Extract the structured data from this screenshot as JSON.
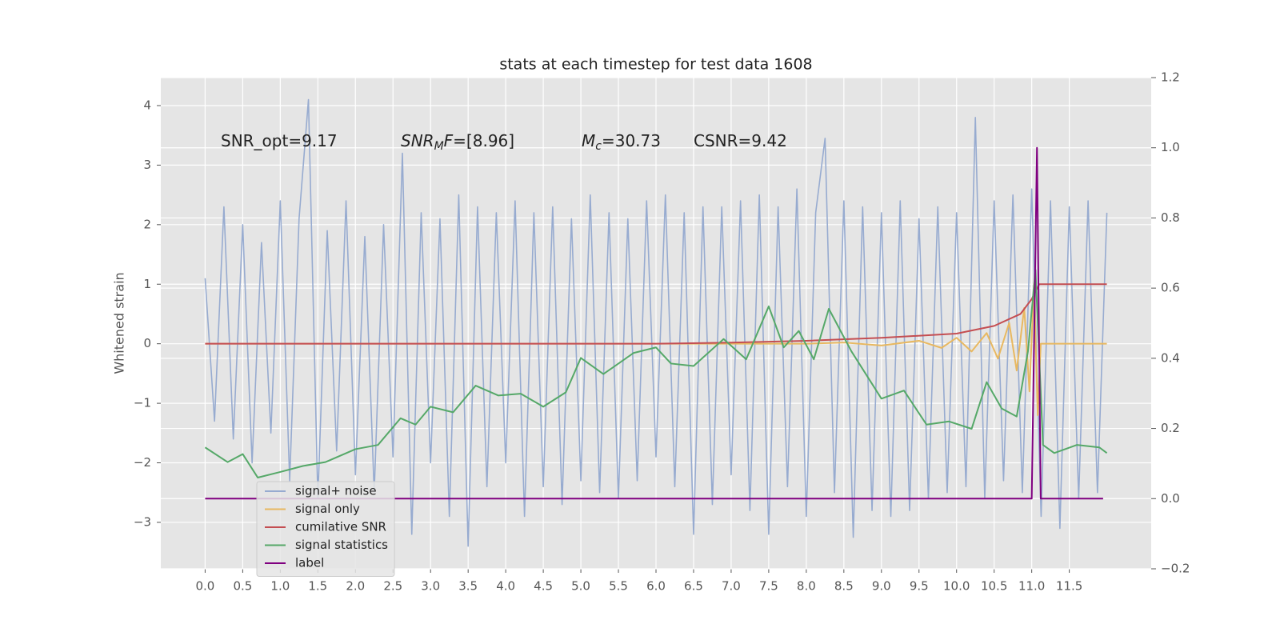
{
  "chart_data": {
    "type": "line",
    "title": "stats at each timestep for test data 1608",
    "ylabel": "Whitened strain",
    "xlim": [
      -0.59,
      12.59
    ],
    "ylim": [
      -3.78,
      4.47
    ],
    "y2lim": [
      -0.2,
      1.2
    ],
    "xticks": [
      {
        "value": 0,
        "label": "0.0"
      },
      {
        "value": 0.5,
        "label": "0.5"
      },
      {
        "value": 1,
        "label": "1.0"
      },
      {
        "value": 1.5,
        "label": "1.5"
      },
      {
        "value": 2,
        "label": "2.0"
      },
      {
        "value": 2.5,
        "label": "2.5"
      },
      {
        "value": 3,
        "label": "3.0"
      },
      {
        "value": 3.5,
        "label": "3.5"
      },
      {
        "value": 4,
        "label": "4.0"
      },
      {
        "value": 4.5,
        "label": "4.5"
      },
      {
        "value": 5,
        "label": "5.0"
      },
      {
        "value": 5.5,
        "label": "5.5"
      },
      {
        "value": 6,
        "label": "6.0"
      },
      {
        "value": 6.5,
        "label": "6.5"
      },
      {
        "value": 7,
        "label": "7.0"
      },
      {
        "value": 7.5,
        "label": "7.5"
      },
      {
        "value": 8,
        "label": "8.0"
      },
      {
        "value": 8.5,
        "label": "8.5"
      },
      {
        "value": 9,
        "label": "9.0"
      },
      {
        "value": 9.5,
        "label": "9.5"
      },
      {
        "value": 10,
        "label": "10.0"
      },
      {
        "value": 10.5,
        "label": "10.5"
      },
      {
        "value": 11,
        "label": "11.0"
      },
      {
        "value": 11.5,
        "label": "11.5"
      }
    ],
    "yticks": [
      {
        "value": -3,
        "label": "−3"
      },
      {
        "value": -2,
        "label": "−2"
      },
      {
        "value": -1,
        "label": "−1"
      },
      0,
      1,
      2,
      3,
      4
    ],
    "y2ticks": [
      {
        "value": -0.2,
        "label": "−0.2"
      },
      {
        "value": 0,
        "label": "0.0"
      },
      0.2,
      0.4,
      0.6,
      0.8,
      {
        "value": 1,
        "label": "1.0"
      },
      1.2
    ],
    "grid": true,
    "legend": "lower left",
    "annotations": [
      {
        "parts": [
          {
            "text": "SNR_opt=9.17"
          }
        ]
      },
      {
        "parts": [
          {
            "text": "SNR",
            "style": "italic"
          },
          {
            "text": "M",
            "style": "sub"
          },
          {
            "text": "F",
            "style": "italic"
          },
          {
            "text": "=[8.96]"
          }
        ]
      },
      {
        "parts": [
          {
            "text": "M",
            "style": "italic"
          },
          {
            "text": "c",
            "style": "sub"
          },
          {
            "text": "=30.73"
          }
        ]
      },
      {
        "parts": [
          {
            "text": "CSNR=9.42"
          }
        ]
      }
    ],
    "series": [
      {
        "name": "signal+ noise",
        "color": "#97abd0",
        "x": [
          0,
          0.125,
          0.25,
          0.375,
          0.5,
          0.625,
          0.75,
          0.875,
          1,
          1.125,
          1.25,
          1.375,
          1.5,
          1.625,
          1.75,
          1.875,
          2,
          2.125,
          2.25,
          2.375,
          2.5,
          2.625,
          2.75,
          2.875,
          3,
          3.125,
          3.25,
          3.375,
          3.5,
          3.625,
          3.75,
          3.875,
          4,
          4.125,
          4.25,
          4.375,
          4.5,
          4.625,
          4.75,
          4.875,
          5,
          5.125,
          5.25,
          5.375,
          5.5,
          5.625,
          5.75,
          5.875,
          6,
          6.125,
          6.25,
          6.375,
          6.5,
          6.625,
          6.75,
          6.875,
          7,
          7.125,
          7.25,
          7.375,
          7.5,
          7.625,
          7.75,
          7.875,
          8,
          8.125,
          8.25,
          8.375,
          8.5,
          8.625,
          8.75,
          8.875,
          9,
          9.125,
          9.25,
          9.375,
          9.5,
          9.625,
          9.75,
          9.875,
          10,
          10.125,
          10.25,
          10.375,
          10.5,
          10.625,
          10.75,
          10.875,
          11,
          11.125,
          11.25,
          11.375,
          11.5,
          11.625,
          11.75,
          11.875,
          12
        ],
        "values": [
          1.1,
          -1.3,
          2.3,
          -1.6,
          2.0,
          -2.0,
          1.7,
          -1.5,
          2.4,
          -2.3,
          2.1,
          4.1,
          -2.6,
          1.9,
          -1.8,
          2.4,
          -2.2,
          1.8,
          -2.5,
          2.0,
          -1.9,
          3.2,
          -3.2,
          2.2,
          -2.0,
          2.1,
          -2.9,
          2.5,
          -3.4,
          2.3,
          -2.4,
          2.2,
          -2.0,
          2.4,
          -2.9,
          2.2,
          -2.4,
          2.3,
          -2.7,
          2.1,
          -2.3,
          2.5,
          -2.5,
          2.2,
          -2.6,
          2.1,
          -2.3,
          2.4,
          -1.9,
          2.5,
          -2.4,
          2.2,
          -3.2,
          2.3,
          -2.7,
          2.3,
          -2.2,
          2.4,
          -2.8,
          2.5,
          -3.2,
          2.3,
          -2.4,
          2.6,
          -2.9,
          2.2,
          3.45,
          -2.5,
          2.4,
          -3.25,
          2.3,
          -2.8,
          2.2,
          -2.9,
          2.4,
          -2.8,
          2.1,
          -2.6,
          2.3,
          -2.5,
          2.2,
          -2.4,
          3.8,
          -2.6,
          2.4,
          -2.3,
          2.5,
          -2.5,
          2.6,
          -2.9,
          2.4,
          -3.1,
          2.3,
          -2.6,
          2.4,
          -2.5,
          2.2
        ]
      },
      {
        "name": "signal only",
        "color": "#e8b860",
        "x": [
          0,
          8,
          8.5,
          9,
          9.5,
          9.8,
          10,
          10.2,
          10.4,
          10.55,
          10.7,
          10.8,
          10.9,
          10.97,
          11.03,
          11.08,
          11.12,
          12
        ],
        "values": [
          0,
          0,
          0.02,
          -0.03,
          0.05,
          -0.07,
          0.1,
          -0.13,
          0.18,
          -0.25,
          0.35,
          -0.45,
          0.6,
          -0.8,
          1.0,
          -1.2,
          0,
          0
        ]
      },
      {
        "name": "cumilative SNR",
        "color": "#c44e52",
        "x": [
          0,
          6,
          7,
          8,
          9,
          10,
          10.5,
          10.85,
          11,
          11.1,
          12
        ],
        "values": [
          0,
          0,
          0.02,
          0.05,
          0.1,
          0.17,
          0.3,
          0.5,
          0.75,
          1.0,
          1.0
        ]
      },
      {
        "name": "signal statistics",
        "color": "#55a868",
        "axis": "y2",
        "x": [
          0,
          0.3,
          0.5,
          0.7,
          1,
          1.3,
          1.6,
          2,
          2.3,
          2.6,
          2.8,
          3,
          3.3,
          3.6,
          3.9,
          4.2,
          4.5,
          4.8,
          5,
          5.3,
          5.7,
          6,
          6.2,
          6.5,
          6.9,
          7.2,
          7.5,
          7.7,
          7.9,
          8.1,
          8.3,
          8.6,
          9,
          9.3,
          9.6,
          9.9,
          10.2,
          10.4,
          10.6,
          10.8,
          10.95,
          11.05,
          11.15,
          11.3,
          11.6,
          11.9,
          12
        ],
        "values": [
          0.146,
          0.104,
          0.127,
          0.06,
          0.076,
          0.093,
          0.104,
          0.141,
          0.153,
          0.229,
          0.211,
          0.262,
          0.246,
          0.322,
          0.294,
          0.299,
          0.262,
          0.303,
          0.401,
          0.355,
          0.415,
          0.431,
          0.385,
          0.378,
          0.455,
          0.397,
          0.548,
          0.431,
          0.478,
          0.397,
          0.541,
          0.42,
          0.285,
          0.308,
          0.211,
          0.22,
          0.199,
          0.332,
          0.257,
          0.234,
          0.42,
          0.652,
          0.153,
          0.13,
          0.153,
          0.146,
          0.13
        ]
      },
      {
        "name": "label",
        "color": "#800080",
        "axis": "y2",
        "x": [
          0,
          11.0,
          11.07,
          11.12,
          11.95
        ],
        "values": [
          0,
          0,
          1.0,
          0,
          0
        ]
      }
    ]
  }
}
